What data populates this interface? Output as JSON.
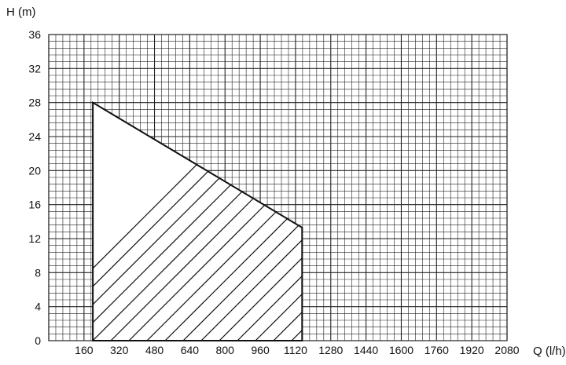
{
  "chart_data": {
    "type": "area",
    "title": "",
    "xlabel": "Q (l/h)",
    "ylabel": "H (m)",
    "xlim": [
      0,
      2080
    ],
    "ylim": [
      0,
      36
    ],
    "x_ticks": [
      160,
      320,
      480,
      640,
      800,
      960,
      1120,
      1280,
      1440,
      1600,
      1760,
      1920,
      2080
    ],
    "y_ticks": [
      0,
      4,
      8,
      12,
      16,
      20,
      24,
      28,
      32,
      36
    ],
    "grid": true,
    "minor_grid_step_x": 32,
    "minor_grid_step_y": 0.8,
    "legend": "none",
    "series": [
      {
        "style": "hatched-area",
        "points": [
          {
            "x": 200,
            "y": 0
          },
          {
            "x": 200,
            "y": 28
          },
          {
            "x": 1150,
            "y": 13.3
          },
          {
            "x": 1150,
            "y": 0
          }
        ]
      }
    ],
    "colors": {
      "grid": "#222222",
      "outline": "#111111",
      "hatch": "#111111",
      "text": "#111111"
    }
  }
}
